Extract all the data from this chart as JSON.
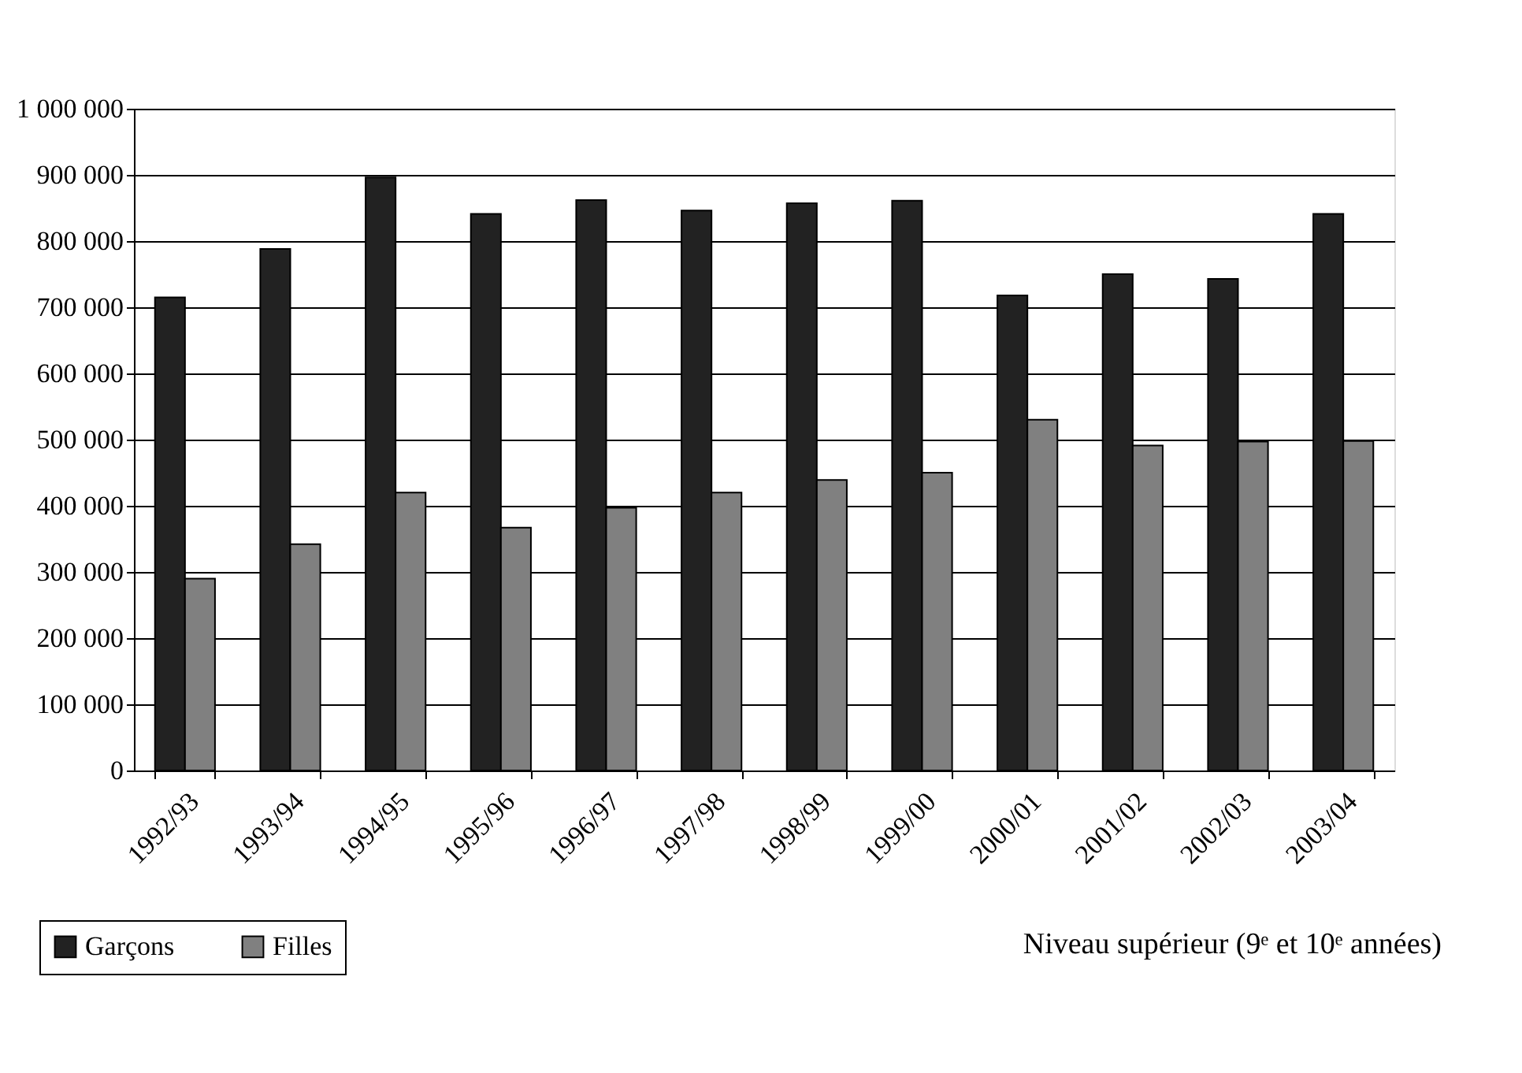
{
  "chart_data": {
    "type": "bar",
    "categories": [
      "1992/93",
      "1993/94",
      "1994/95",
      "1995/96",
      "1996/97",
      "1997/98",
      "1998/99",
      "1999/00",
      "2000/01",
      "2001/02",
      "2002/03",
      "2003/04"
    ],
    "series": [
      {
        "name": "Garçons",
        "color": "#222222",
        "values": [
          715000,
          788000,
          896000,
          841000,
          862000,
          846000,
          857000,
          861000,
          718000,
          750000,
          743000,
          841000
        ]
      },
      {
        "name": "Filles",
        "color": "#808080",
        "values": [
          290000,
          342000,
          420000,
          367000,
          397000,
          420000,
          439000,
          450000,
          530000,
          491000,
          497000,
          498000
        ]
      }
    ],
    "ylim": [
      0,
      1000000
    ],
    "yticks": [
      {
        "value": 0,
        "label": "0"
      },
      {
        "value": 100000,
        "label": "100 000"
      },
      {
        "value": 200000,
        "label": "200 000"
      },
      {
        "value": 300000,
        "label": "300 000"
      },
      {
        "value": 400000,
        "label": "400 000"
      },
      {
        "value": 500000,
        "label": "500 000"
      },
      {
        "value": 600000,
        "label": "600 000"
      },
      {
        "value": 700000,
        "label": "700 000"
      },
      {
        "value": 800000,
        "label": "800 000"
      },
      {
        "value": 900000,
        "label": "900 000"
      },
      {
        "value": 1000000,
        "label": "1 000 000"
      }
    ],
    "grid": "y",
    "legend": "bottom left",
    "annotations": [
      "Niveau supérieur (9ᵉ et 10ᵉ années)"
    ]
  }
}
